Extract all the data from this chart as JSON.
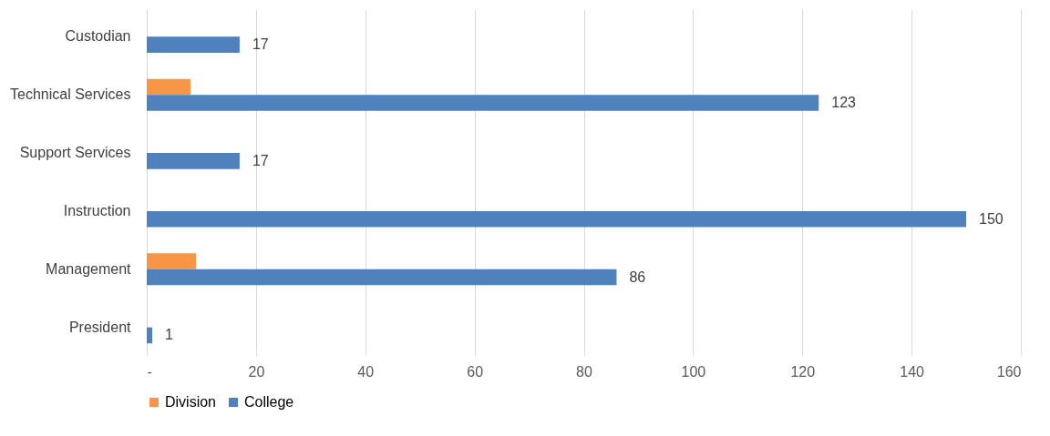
{
  "chart_data": {
    "type": "bar",
    "orientation": "horizontal",
    "categories": [
      "Custodian",
      "Technical Services",
      "Support Services",
      "Instruction",
      "Management",
      "President"
    ],
    "series": [
      {
        "name": "Division",
        "color": "#f79646",
        "values": [
          null,
          8,
          null,
          null,
          9,
          null
        ]
      },
      {
        "name": "College",
        "color": "#4f81bd",
        "values": [
          17,
          123,
          17,
          150,
          86,
          1
        ],
        "value_labels": [
          "17",
          "123",
          "17",
          "150",
          "86",
          "1"
        ]
      }
    ],
    "xlim": [
      0,
      160
    ],
    "xticks": [
      {
        "value": 0,
        "label": "-"
      },
      20,
      40,
      60,
      80,
      100,
      120,
      140,
      160
    ],
    "grid": "x",
    "legend": "bottom"
  }
}
